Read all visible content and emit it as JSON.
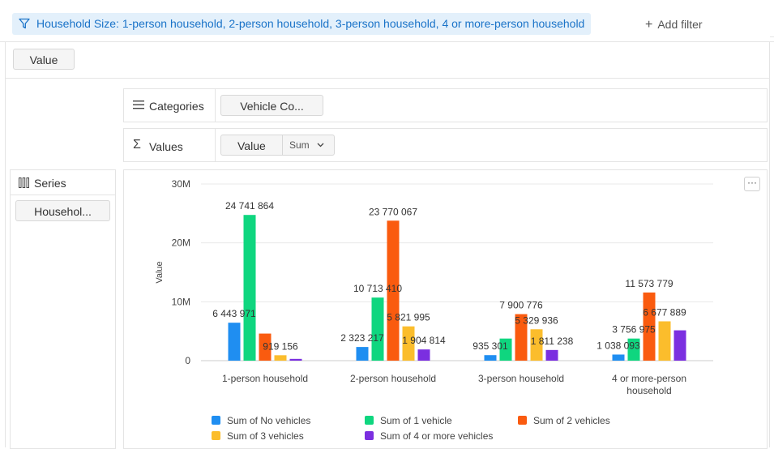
{
  "filter": {
    "label": "Household Size: 1-person household, 2-person household, 3-person household, 4 or more-person household",
    "add_filter_label": "Add filter"
  },
  "value_pill": "Value",
  "categories_panel": {
    "label": "Categories",
    "pill": "Vehicle Co..."
  },
  "values_panel": {
    "label": "Values",
    "pill": "Value",
    "agg": "Sum"
  },
  "series_panel": {
    "label": "Series",
    "pill": "Househol..."
  },
  "menu_label": "···",
  "colors": {
    "no_vehicles": "#1f8ef1",
    "one_vehicle": "#0fd67f",
    "two_vehicles": "#fa5b0f",
    "three_vehicles": "#fbbd2c",
    "four_plus": "#7b2fe0",
    "accent": "#1a73c8"
  },
  "chart_data": {
    "type": "bar",
    "categories": [
      "1-person household",
      "2-person household",
      "3-person household",
      "4 or more-person household"
    ],
    "series": [
      {
        "name": "Sum of No vehicles",
        "values": [
          6443971,
          2323217,
          935301,
          1038093
        ],
        "labels": [
          "6 443 971",
          "2 323 217",
          "935 301",
          "1 038 093"
        ],
        "color": "#1f8ef1"
      },
      {
        "name": "Sum of 1 vehicle",
        "values": [
          24741864,
          10713410,
          3756975,
          3756975
        ],
        "labels": [
          "24 741 864",
          "10 713 410",
          "",
          "3 756 975"
        ],
        "color": "#0fd67f"
      },
      {
        "name": "Sum of 2 vehicles",
        "values": [
          4600000,
          23770067,
          7900776,
          11573779
        ],
        "labels": [
          "",
          "23 770 067",
          "7 900 776",
          "11 573 779"
        ],
        "color": "#fa5b0f"
      },
      {
        "name": "Sum of 3 vehicles",
        "values": [
          919156,
          5821995,
          5329936,
          6677889
        ],
        "labels": [
          "919 156",
          "5 821 995",
          "5 329 936",
          "6 677 889"
        ],
        "color": "#fbbd2c"
      },
      {
        "name": "Sum of 4 or more vehicles",
        "values": [
          300000,
          1904814,
          1811238,
          5150000
        ],
        "labels": [
          "",
          "1 904 814",
          "1 811 238",
          ""
        ],
        "color": "#7b2fe0"
      }
    ],
    "ylabel": "Value",
    "ylim": [
      0,
      30000000
    ],
    "yticks": [
      0,
      10000000,
      20000000,
      30000000
    ],
    "yticklabels": [
      "0",
      "10M",
      "20M",
      "30M"
    ],
    "grid": true,
    "legend": "bottom"
  }
}
